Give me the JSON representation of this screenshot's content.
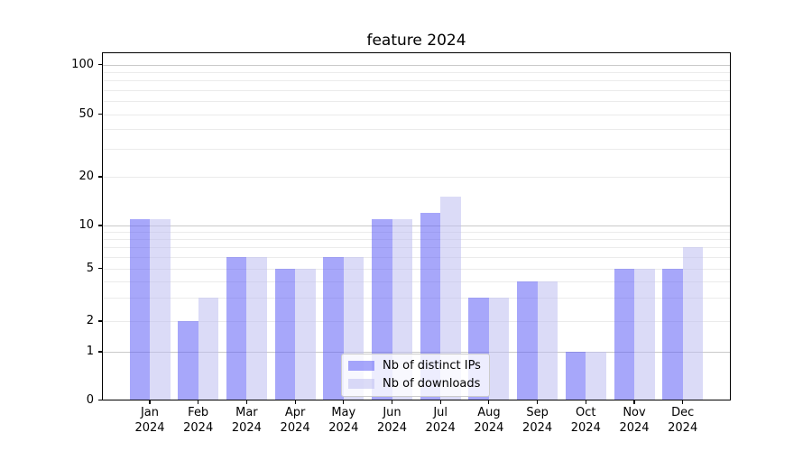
{
  "chart_data": {
    "type": "bar",
    "title": "feature 2024",
    "categories": [
      "Jan 2024",
      "Feb 2024",
      "Mar 2024",
      "Apr 2024",
      "May 2024",
      "Jun 2024",
      "Jul 2024",
      "Aug 2024",
      "Sep 2024",
      "Oct 2024",
      "Nov 2024",
      "Dec 2024"
    ],
    "series": [
      {
        "name": "Nb of distinct IPs",
        "color": "#5f5ff5",
        "alpha": 0.55,
        "values": [
          11,
          2,
          6,
          5,
          6,
          11,
          12,
          3,
          4,
          1,
          5,
          5
        ]
      },
      {
        "name": "Nb of downloads",
        "color": "#bebef0",
        "alpha": 0.55,
        "values": [
          11,
          3,
          6,
          5,
          6,
          11,
          15,
          3,
          4,
          1,
          5,
          7
        ]
      }
    ],
    "y_axis": {
      "scale": "symlog",
      "ticks": [
        0,
        1,
        2,
        5,
        10,
        20,
        50,
        100
      ],
      "major_gridlines": [
        1,
        10,
        100
      ],
      "minor_gridlines": [
        2,
        3,
        4,
        5,
        6,
        7,
        8,
        9,
        20,
        30,
        40,
        50,
        60,
        70,
        80,
        90
      ]
    },
    "grid": true,
    "legend_position": "lower-center",
    "colors": {
      "major_grid": "#c9c9c9",
      "minor_grid": "#ebebeb",
      "axis": "#000000"
    }
  }
}
